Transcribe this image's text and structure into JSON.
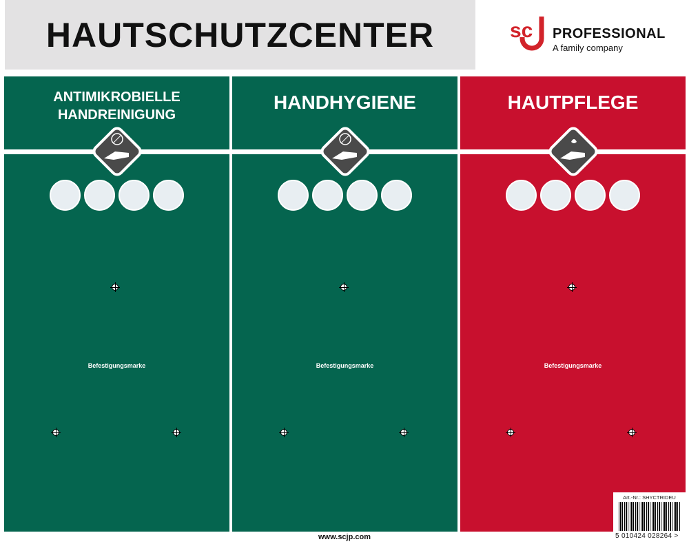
{
  "title": "HAUTSCHUTZCENTER",
  "logo": {
    "mark": "SCJ",
    "name": "PROFESSIONAL",
    "tagline": "A family company",
    "brand_color": "#d2232a"
  },
  "colors": {
    "green": "#05654f",
    "red": "#c8102e",
    "badge": "#4a4a4a"
  },
  "panels": [
    {
      "title": "ANTIMIKROBIELLE HANDREINIGUNG",
      "badge_icon": "hand-antimicrobial-icon",
      "step_icons": [
        "hand-wet-icon",
        "hand-soap-icon",
        "hand-rub-icon",
        "hand-rinse-icon"
      ],
      "marker_label": "Befestigungsmarke"
    },
    {
      "title": "HANDHYGIENE",
      "badge_icon": "hand-hygiene-icon",
      "step_icons": [
        "hand-soap-icon",
        "hand-rub-icon",
        "hand-clasp-icon",
        "hand-rinse-icon"
      ],
      "marker_label": "Befestigungsmarke"
    },
    {
      "title": "HAUTPFLEGE",
      "badge_icon": "hand-care-icon",
      "step_icons": [
        "hand-cream-icon",
        "hand-rub-icon",
        "hand-spread-icon",
        "hand-clasp-icon"
      ],
      "marker_label": "Befestigungsmarke"
    }
  ],
  "footer": {
    "url": "www.scjp.com"
  },
  "barcode": {
    "article": "Art.-Nr.: SHYCTRIDEU",
    "number": "5 010424 028264 >"
  }
}
